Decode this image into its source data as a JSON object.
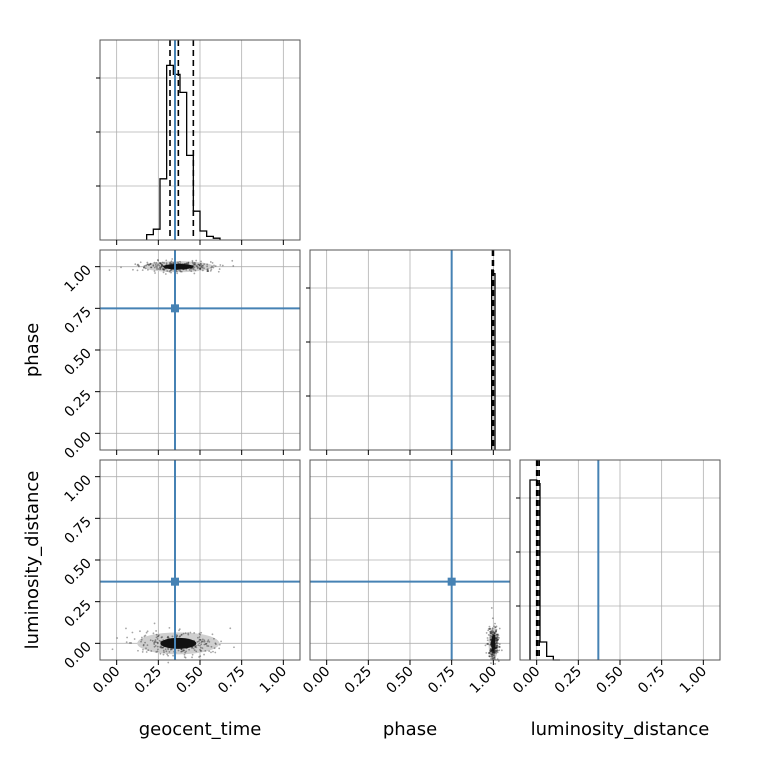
{
  "chart_data": {
    "type": "corner",
    "parameters": [
      "geocent_time",
      "phase",
      "luminosity_distance"
    ],
    "truths": [
      0.35,
      0.75,
      0.37
    ],
    "axis_limits": [
      [
        -0.1,
        1.1
      ],
      [
        -0.1,
        1.1
      ],
      [
        -0.1,
        1.1
      ]
    ],
    "tick_values": [
      0.0,
      0.25,
      0.5,
      0.75,
      1.0
    ],
    "tick_labels": [
      "0.00",
      "0.25",
      "0.50",
      "0.75",
      "1.00"
    ],
    "grid": true,
    "marginals": [
      {
        "parameter": "geocent_time",
        "quantiles": [
          0.32,
          0.37,
          0.46
        ],
        "bin_edges": [
          0.18,
          0.22,
          0.26,
          0.3,
          0.34,
          0.38,
          0.42,
          0.46,
          0.5,
          0.54,
          0.58,
          0.62
        ],
        "counts": [
          0.03,
          0.06,
          0.34,
          0.97,
          0.92,
          0.82,
          0.47,
          0.16,
          0.05,
          0.02,
          0.01
        ]
      },
      {
        "parameter": "phase",
        "quantiles": [
          0.995,
          1.0,
          1.0
        ],
        "bin_edges": [
          0.99,
          1.0,
          1.01
        ],
        "counts": [
          1.0,
          0.98
        ]
      },
      {
        "parameter": "luminosity_distance",
        "quantiles": [
          0.0,
          0.005,
          0.015
        ],
        "bin_edges": [
          -0.04,
          0.0,
          0.02,
          0.06,
          0.1,
          0.14
        ],
        "counts": [
          1.0,
          0.98,
          0.1,
          0.02,
          0.0
        ]
      }
    ],
    "scatter_panels": [
      {
        "x": "geocent_time",
        "y": "phase",
        "center": [
          0.37,
          1.0
        ],
        "spread": [
          0.06,
          0.01
        ]
      },
      {
        "x": "geocent_time",
        "y": "luminosity_distance",
        "center": [
          0.37,
          0.0
        ],
        "spread": [
          0.07,
          0.02
        ]
      },
      {
        "x": "phase",
        "y": "luminosity_distance",
        "center": [
          1.0,
          0.0
        ],
        "spread": [
          0.004,
          0.03
        ]
      }
    ],
    "colors": {
      "truth": "#4682b4",
      "data": "#000000",
      "grid": "#b0b0b0"
    }
  }
}
